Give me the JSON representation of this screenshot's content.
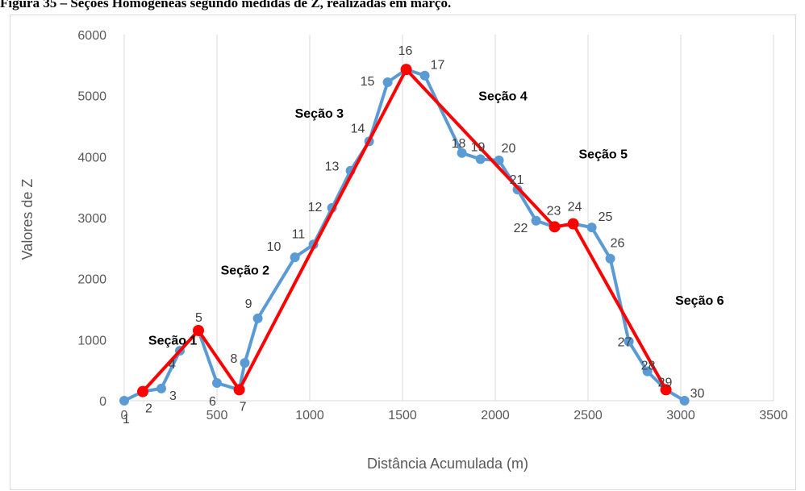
{
  "caption": "Figura 35 – Seções Homogêneas segundo medidas de Z, realizadas em março.",
  "chart_data": {
    "type": "scatter",
    "xlabel": "Distância Acumulada (m)",
    "ylabel": "Valores de Z",
    "xlim": [
      0,
      3500
    ],
    "ylim": [
      0,
      6000
    ],
    "xticks": [
      0,
      500,
      1000,
      1500,
      2000,
      2500,
      3000,
      3500
    ],
    "yticks": [
      0,
      1000,
      2000,
      3000,
      4000,
      5000,
      6000
    ],
    "grid": "vertical",
    "series": [
      {
        "color": "#5b9bd5",
        "points": [
          {
            "x": 0,
            "y": 0,
            "label": "1"
          },
          {
            "x": 100,
            "y": 150,
            "label": "2"
          },
          {
            "x": 200,
            "y": 200,
            "label": "3"
          },
          {
            "x": 300,
            "y": 820,
            "label": "4"
          },
          {
            "x": 400,
            "y": 1150,
            "label": "5"
          },
          {
            "x": 500,
            "y": 290,
            "label": "6"
          },
          {
            "x": 620,
            "y": 180,
            "label": "7"
          },
          {
            "x": 650,
            "y": 620,
            "label": "8"
          },
          {
            "x": 720,
            "y": 1350,
            "label": "9"
          },
          {
            "x": 920,
            "y": 2350,
            "label": "10"
          },
          {
            "x": 1020,
            "y": 2560,
            "label": "11"
          },
          {
            "x": 1120,
            "y": 3160,
            "label": "12"
          },
          {
            "x": 1220,
            "y": 3770,
            "label": "13"
          },
          {
            "x": 1320,
            "y": 4250,
            "label": "14"
          },
          {
            "x": 1420,
            "y": 5220,
            "label": "15"
          },
          {
            "x": 1520,
            "y": 5430,
            "label": "16"
          },
          {
            "x": 1620,
            "y": 5330,
            "label": "17"
          },
          {
            "x": 1820,
            "y": 4060,
            "label": "18"
          },
          {
            "x": 1920,
            "y": 3960,
            "label": "19"
          },
          {
            "x": 2020,
            "y": 3940,
            "label": "20"
          },
          {
            "x": 2120,
            "y": 3460,
            "label": "21"
          },
          {
            "x": 2220,
            "y": 2950,
            "label": "22"
          },
          {
            "x": 2320,
            "y": 2850,
            "label": "23"
          },
          {
            "x": 2420,
            "y": 2900,
            "label": "24"
          },
          {
            "x": 2520,
            "y": 2840,
            "label": "25"
          },
          {
            "x": 2620,
            "y": 2330,
            "label": "26"
          },
          {
            "x": 2720,
            "y": 970,
            "label": "27"
          },
          {
            "x": 2820,
            "y": 480,
            "label": "28"
          },
          {
            "x": 2920,
            "y": 180,
            "label": "29"
          },
          {
            "x": 3020,
            "y": 0,
            "label": "30"
          }
        ]
      },
      {
        "color": "#ff0000",
        "points": [
          {
            "x": 100,
            "y": 150
          },
          {
            "x": 400,
            "y": 1150
          },
          {
            "x": 620,
            "y": 180
          },
          {
            "x": 1520,
            "y": 5430
          },
          {
            "x": 2320,
            "y": 2850
          },
          {
            "x": 2420,
            "y": 2900
          },
          {
            "x": 2920,
            "y": 180
          }
        ]
      }
    ],
    "annotations": [
      {
        "text": "Seção 1",
        "x": 130,
        "y": 1000
      },
      {
        "text": "Seção 2",
        "x": 520,
        "y": 2150
      },
      {
        "text": "Seção 3",
        "x": 920,
        "y": 4720
      },
      {
        "text": "Seção 4",
        "x": 1910,
        "y": 5000
      },
      {
        "text": "Seção 5",
        "x": 2450,
        "y": 4050
      },
      {
        "text": "Seção 6",
        "x": 2970,
        "y": 1650
      }
    ]
  }
}
